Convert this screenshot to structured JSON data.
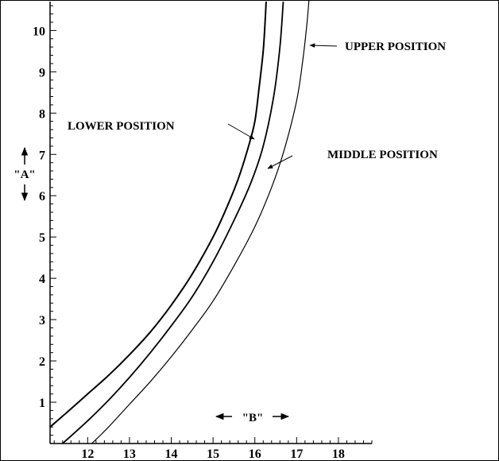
{
  "chart_data": {
    "type": "line",
    "title": "",
    "xlabel": "\"B\"",
    "ylabel": "\"A\"",
    "xlim": [
      11.1,
      18.8
    ],
    "ylim": [
      0,
      10.7
    ],
    "x_ticks": [
      12,
      13,
      14,
      15,
      16,
      17,
      18
    ],
    "y_ticks": [
      1,
      2,
      3,
      4,
      5,
      6,
      7,
      8,
      9,
      10
    ],
    "grid": false,
    "legend": "none",
    "series": [
      {
        "name": "LOWER POSITION",
        "points": [
          [
            11.1,
            0.4
          ],
          [
            11.5,
            0.75
          ],
          [
            12.0,
            1.2
          ],
          [
            12.5,
            1.65
          ],
          [
            13.0,
            2.15
          ],
          [
            13.5,
            2.7
          ],
          [
            14.0,
            3.35
          ],
          [
            14.5,
            4.1
          ],
          [
            15.0,
            5.0
          ],
          [
            15.3,
            5.65
          ],
          [
            15.6,
            6.4
          ],
          [
            15.85,
            7.2
          ],
          [
            16.0,
            7.8
          ],
          [
            16.1,
            8.6
          ],
          [
            16.2,
            9.5
          ],
          [
            16.25,
            10.3
          ],
          [
            16.27,
            10.7
          ]
        ]
      },
      {
        "name": "MIDDLE POSITION",
        "points": [
          [
            11.4,
            0.0
          ],
          [
            12.0,
            0.55
          ],
          [
            12.5,
            1.05
          ],
          [
            13.0,
            1.6
          ],
          [
            13.5,
            2.2
          ],
          [
            14.0,
            2.85
          ],
          [
            14.5,
            3.55
          ],
          [
            15.0,
            4.4
          ],
          [
            15.5,
            5.4
          ],
          [
            15.9,
            6.3
          ],
          [
            16.2,
            7.2
          ],
          [
            16.45,
            8.4
          ],
          [
            16.6,
            9.6
          ],
          [
            16.68,
            10.7
          ]
        ]
      },
      {
        "name": "UPPER POSITION",
        "points": [
          [
            12.1,
            0.0
          ],
          [
            12.5,
            0.4
          ],
          [
            13.0,
            0.95
          ],
          [
            13.5,
            1.5
          ],
          [
            14.0,
            2.1
          ],
          [
            14.5,
            2.75
          ],
          [
            15.0,
            3.45
          ],
          [
            15.5,
            4.3
          ],
          [
            16.0,
            5.25
          ],
          [
            16.4,
            6.2
          ],
          [
            16.7,
            7.1
          ],
          [
            17.0,
            8.3
          ],
          [
            17.15,
            9.3
          ],
          [
            17.25,
            10.2
          ],
          [
            17.3,
            10.8
          ]
        ]
      }
    ],
    "labels": {
      "lower": "LOWER POSITION",
      "middle": "MIDDLE POSITION",
      "upper": "UPPER POSITION"
    }
  }
}
